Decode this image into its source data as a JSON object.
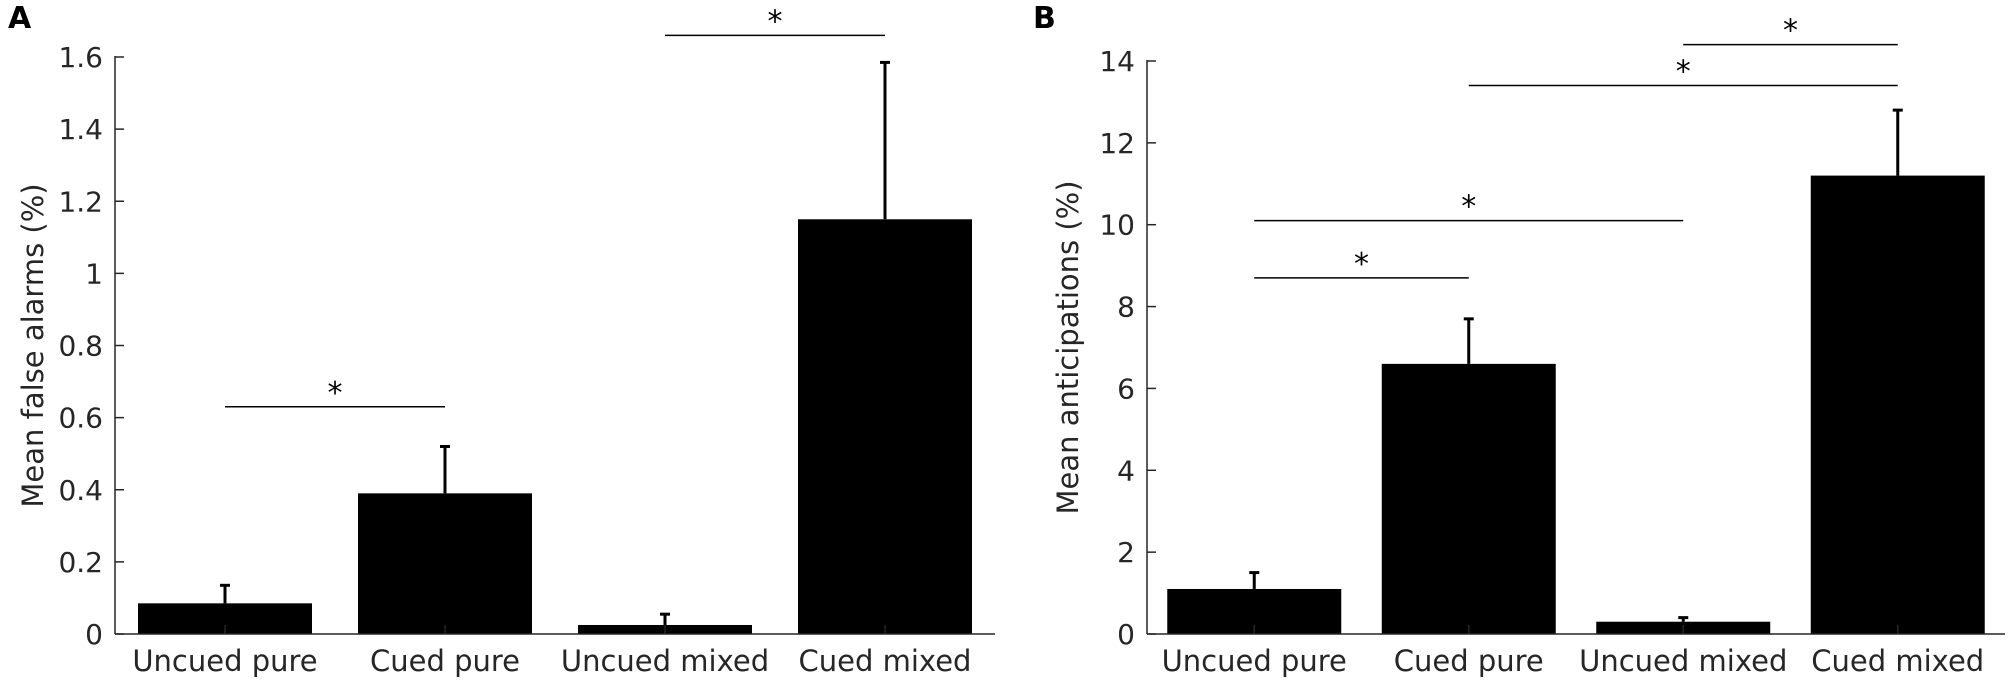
{
  "colors": {
    "bar": "#000000",
    "axis": "#262626",
    "background": "#ffffff"
  },
  "chart_data": [
    {
      "type": "bar",
      "panel_label": "A",
      "categories": [
        "Uncued pure",
        "Cued pure",
        "Uncued mixed",
        "Cued mixed"
      ],
      "values": [
        0.085,
        0.39,
        0.025,
        1.15
      ],
      "error_upper": [
        0.135,
        0.52,
        0.055,
        1.585
      ],
      "ylabel": "Mean false alarms (%)",
      "ylim": [
        0,
        1.6
      ],
      "yticks": [
        0,
        0.2,
        0.4,
        0.6,
        0.8,
        1,
        1.2,
        1.4,
        1.6
      ],
      "ytick_labels": [
        "0",
        "0.2",
        "0.4",
        "0.6",
        "0.8",
        "1",
        "1.2",
        "1.4",
        "1.6"
      ],
      "significance": [
        {
          "from": 0,
          "to": 1,
          "y": 0.63,
          "label": "*"
        },
        {
          "from": 2,
          "to": 3,
          "y": 1.66,
          "label": "*"
        }
      ],
      "grid": false
    },
    {
      "type": "bar",
      "panel_label": "B",
      "categories": [
        "Uncued pure",
        "Cued pure",
        "Uncued mixed",
        "Cued mixed"
      ],
      "values": [
        1.1,
        6.6,
        0.3,
        11.2
      ],
      "error_upper": [
        1.5,
        7.7,
        0.4,
        12.8
      ],
      "ylabel": "Mean anticipations (%)",
      "ylim": [
        0,
        14
      ],
      "yticks": [
        0,
        2,
        4,
        6,
        8,
        10,
        12,
        14
      ],
      "ytick_labels": [
        "0",
        "2",
        "4",
        "6",
        "8",
        "10",
        "12",
        "14"
      ],
      "significance": [
        {
          "from": 0,
          "to": 1,
          "y": 8.7,
          "label": "*"
        },
        {
          "from": 0,
          "to": 2,
          "y": 10.1,
          "label": "*"
        },
        {
          "from": 1,
          "to": 3,
          "y": 13.4,
          "label": "*"
        },
        {
          "from": 2,
          "to": 3,
          "y": 14.4,
          "label": "*"
        }
      ],
      "grid": false
    }
  ]
}
